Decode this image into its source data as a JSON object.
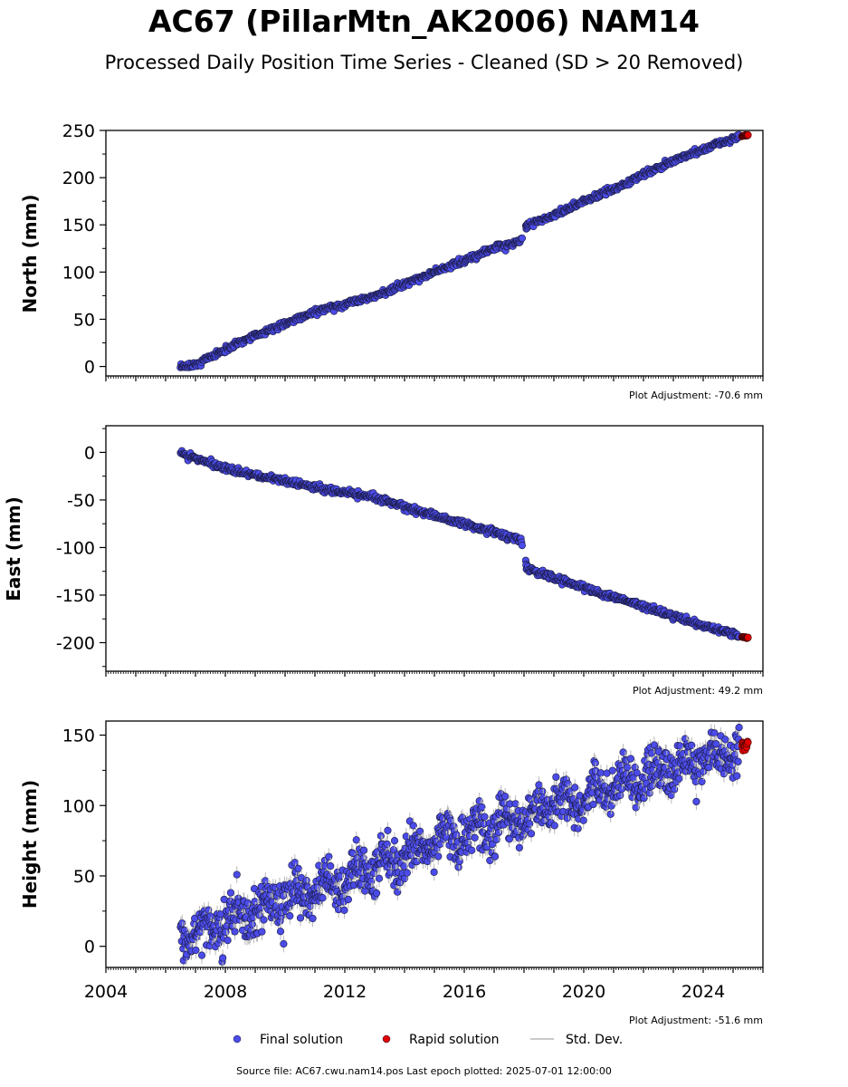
{
  "title": "AC67 (PillarMtn_AK2006) NAM14",
  "subtitle": "Processed Daily Position Time Series - Cleaned (SD > 20 Removed)",
  "footer": "Source file: AC67.cwu.nam14.pos  Last epoch plotted: 2025-07-01 12:00:00",
  "colors": {
    "final": "#4b4be8",
    "rapid": "#e00000",
    "stddev": "#b8b8b8"
  },
  "legend": [
    {
      "label": "Final solution",
      "marker": "dot",
      "color": "#4b4be8"
    },
    {
      "label": "Rapid solution",
      "marker": "dot",
      "color": "#e00000"
    },
    {
      "label": "Std. Dev.",
      "marker": "line",
      "color": "#b8b8b8"
    }
  ],
  "chart_data": [
    {
      "type": "scatter",
      "ylabel": "North (mm)",
      "ylim": [
        -10,
        250
      ],
      "yticks": [
        0,
        50,
        100,
        150,
        200,
        250
      ],
      "xlim": [
        2004,
        2026
      ],
      "adjustment": "Plot Adjustment: -70.6 mm",
      "series": [
        {
          "name": "Final solution",
          "x": [
            2006.5,
            2007.0,
            2008.0,
            2009.0,
            2010.0,
            2011.0,
            2012.0,
            2013.0,
            2014.0,
            2015.0,
            2016.0,
            2017.0,
            2017.9,
            2018.1,
            2019.0,
            2020.0,
            2021.0,
            2022.0,
            2023.0,
            2024.0,
            2025.2
          ],
          "y": [
            -2,
            2,
            18,
            33,
            45,
            58,
            66,
            75,
            87,
            100,
            112,
            125,
            132,
            150,
            160,
            175,
            188,
            203,
            218,
            230,
            243
          ]
        },
        {
          "name": "Rapid solution",
          "x": [
            2025.3,
            2025.5
          ],
          "y": [
            244,
            245
          ]
        }
      ]
    },
    {
      "type": "scatter",
      "ylabel": "East (mm)",
      "ylim": [
        -230,
        28
      ],
      "yticks": [
        0,
        -50,
        -100,
        -150,
        -200
      ],
      "xlim": [
        2004,
        2026
      ],
      "adjustment": "Plot Adjustment: 49.2 mm",
      "series": [
        {
          "name": "Final solution",
          "x": [
            2006.5,
            2007.0,
            2008.0,
            2009.0,
            2010.0,
            2011.0,
            2012.0,
            2013.0,
            2014.0,
            2015.0,
            2016.0,
            2017.0,
            2017.9,
            2018.1,
            2019.0,
            2020.0,
            2021.0,
            2022.0,
            2023.0,
            2024.0,
            2025.2
          ],
          "y": [
            -1,
            -6,
            -17,
            -24,
            -30,
            -37,
            -42,
            -47,
            -57,
            -66,
            -75,
            -84,
            -92,
            -122,
            -132,
            -142,
            -152,
            -162,
            -172,
            -182,
            -192
          ]
        },
        {
          "name": "Rapid solution",
          "x": [
            2025.3,
            2025.5
          ],
          "y": [
            -194,
            -195
          ]
        }
      ]
    },
    {
      "type": "scatter",
      "ylabel": "Height (mm)",
      "ylim": [
        -15,
        160
      ],
      "yticks": [
        0,
        50,
        100,
        150
      ],
      "xlim": [
        2004,
        2026
      ],
      "xticks": [
        2004,
        2008,
        2012,
        2016,
        2020,
        2024
      ],
      "adjustment": "Plot Adjustment: -51.6 mm",
      "series": [
        {
          "name": "Final solution",
          "x": [
            2006.5,
            2007.0,
            2008.0,
            2009.0,
            2010.0,
            2011.0,
            2012.0,
            2013.0,
            2014.0,
            2015.0,
            2016.0,
            2017.0,
            2018.0,
            2019.0,
            2020.0,
            2021.0,
            2022.0,
            2023.0,
            2024.0,
            2025.2
          ],
          "y": [
            3,
            10,
            17,
            25,
            33,
            40,
            47,
            56,
            65,
            72,
            80,
            86,
            90,
            98,
            106,
            113,
            118,
            124,
            132,
            140
          ]
        },
        {
          "name": "Rapid solution",
          "x": [
            2025.3,
            2025.5
          ],
          "y": [
            142,
            146
          ]
        }
      ]
    }
  ]
}
